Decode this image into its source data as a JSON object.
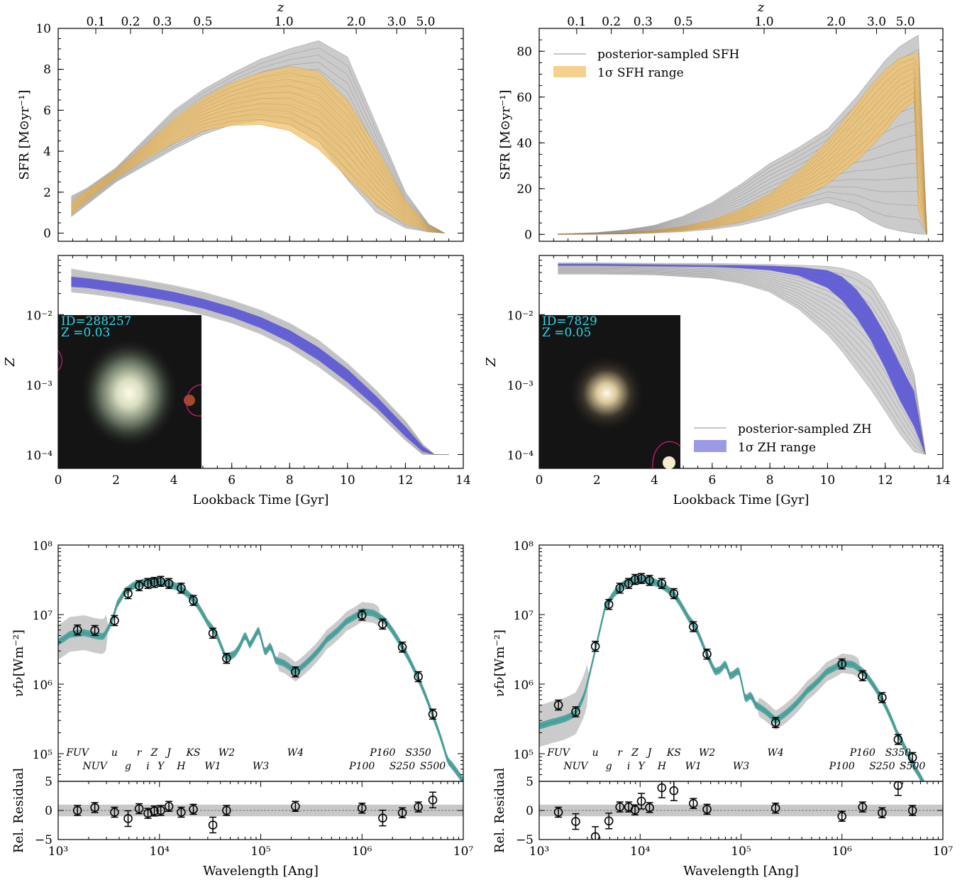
{
  "colors": {
    "posterior": "#8c8c8c",
    "sfh_band": "#f2c26b",
    "zh_band": "#5a55d6",
    "sed_model": "#3f9e98",
    "residual_band": "#c8c8c8",
    "inset_bg": "#141414",
    "inset_text": "#2fd6e6",
    "inset_contour": "#d81b78"
  },
  "labels": {
    "z_top": "z",
    "sfr_ylabel": "SFR [M⊙yr⁻¹]",
    "zh_ylabel": "Z",
    "lookback_xlabel": "Lookback Time [Gyr]",
    "sed_ylabel": "νfν[Wm⁻²]",
    "resid_ylabel": "Rel. Residual",
    "wavelength_xlabel": "Wavelength [Ang]"
  },
  "legends": {
    "sfh_samples": "posterior-sampled SFH",
    "sfh_range": "1σ SFH range",
    "zh_samples": "posterior-sampled ZH",
    "zh_range": "1σ ZH range"
  },
  "redshift_ticks": [
    "0.1",
    "0.2",
    "0.3",
    "0.5",
    "1.0",
    "2.0",
    "3.0",
    "5.0"
  ],
  "lookback_ticks": [
    "0",
    "2",
    "4",
    "6",
    "8",
    "10",
    "12",
    "14"
  ],
  "sed_ticks": [
    "10⁵",
    "10⁶",
    "10⁷",
    "10⁸"
  ],
  "wl_ticks": [
    "10³",
    "10⁴",
    "10⁵",
    "10⁶",
    "10⁷"
  ],
  "resid_ticks": [
    "−5",
    "0",
    "5"
  ],
  "zh_ticks": [
    "10⁻⁴",
    "10⁻³",
    "10⁻²"
  ],
  "band_row1": [
    "FUV",
    "u",
    "r",
    "Z",
    "J",
    "KS",
    "W2",
    "W4",
    "P160",
    "S350"
  ],
  "band_row2": [
    "NUV",
    "g",
    "i",
    "Y",
    "H",
    "W1",
    "W3",
    "P100",
    "S250",
    "S500"
  ],
  "galaxies": [
    {
      "inset_id": "ID=288257",
      "inset_z": "Z =0.03",
      "sfr_ticks": [
        "0",
        "2",
        "4",
        "6",
        "8",
        "10"
      ]
    },
    {
      "inset_id": "ID=7829",
      "inset_z": "Z =0.05",
      "sfr_ticks": [
        "0",
        "20",
        "40",
        "60",
        "80"
      ]
    }
  ],
  "chart_data": [
    {
      "type": "area",
      "panel": "left-sfh",
      "xlabel": "Lookback Time [Gyr]",
      "ylabel": "SFR [M⊙yr⁻¹]",
      "xlim": [
        0,
        14
      ],
      "ylim": [
        -0.4,
        10
      ],
      "top_axis": "z",
      "x": [
        0.45,
        1,
        2,
        3,
        4,
        5,
        6,
        7,
        8,
        9,
        10,
        11,
        12,
        12.8,
        13.35
      ],
      "band_low": [
        0.9,
        1.6,
        2.7,
        3.6,
        4.4,
        5.0,
        5.25,
        5.3,
        5.0,
        4.1,
        2.7,
        1.35,
        0.45,
        0.1,
        0.0
      ],
      "band_high": [
        1.5,
        2.1,
        3.1,
        4.3,
        5.6,
        6.6,
        7.35,
        7.85,
        8.15,
        7.9,
        6.5,
        4.2,
        1.6,
        0.35,
        0.0
      ],
      "samples_low": [
        0.8,
        1.4,
        2.5,
        3.3,
        4.1,
        4.8,
        5.3,
        5.5,
        5.3,
        4.5,
        2.6,
        1.0,
        0.25,
        0.05,
        0.0
      ],
      "samples_high": [
        1.8,
        2.2,
        3.2,
        4.6,
        6.0,
        7.0,
        7.8,
        8.5,
        9.0,
        9.4,
        8.6,
        5.3,
        2.0,
        0.45,
        0.0
      ]
    },
    {
      "type": "area",
      "panel": "left-zh",
      "xlabel": "Lookback Time [Gyr]",
      "ylabel": "Z",
      "xscale": "linear",
      "yscale": "log",
      "xlim": [
        0,
        14
      ],
      "ylim": [
        8e-05,
        0.07
      ],
      "x": [
        0.45,
        1,
        2,
        3,
        4,
        5,
        6,
        7,
        8,
        9,
        10,
        11,
        12,
        12.6,
        13.0,
        13.5
      ],
      "band_low": [
        0.025,
        0.024,
        0.021,
        0.018,
        0.0152,
        0.0122,
        0.0092,
        0.0064,
        0.004,
        0.00222,
        0.00108,
        0.00047,
        0.00018,
        0.00011,
        0.0001,
        0.0001
      ],
      "band_high": [
        0.035,
        0.033,
        0.029,
        0.025,
        0.021,
        0.0168,
        0.0128,
        0.0092,
        0.006,
        0.0034,
        0.00165,
        0.00068,
        0.00025,
        0.00013,
        0.0001,
        0.0001
      ],
      "samples_low": [
        0.021,
        0.02,
        0.0176,
        0.015,
        0.0126,
        0.01,
        0.0076,
        0.0053,
        0.0033,
        0.0018,
        0.00088,
        0.0004,
        0.00016,
        0.0001,
        0.0001,
        0.0001
      ],
      "samples_high": [
        0.045,
        0.041,
        0.036,
        0.031,
        0.026,
        0.021,
        0.016,
        0.0115,
        0.0075,
        0.0043,
        0.002,
        0.00082,
        0.0003,
        0.00014,
        0.0001,
        0.0001
      ]
    },
    {
      "type": "scatter",
      "panel": "left-sed",
      "xlabel": "Wavelength [Ang]",
      "ylabel": "νfν[Wm⁻²]",
      "xscale": "log",
      "yscale": "log",
      "xlim": [
        1000,
        10000000
      ],
      "ylim": [
        40000,
        100000000
      ],
      "model_x": [
        1000,
        1300,
        1800,
        2300,
        2800,
        3400,
        3800,
        4500,
        5500,
        7000,
        9000,
        11000,
        13000,
        16000,
        22000,
        26000,
        30000,
        36000,
        45000,
        55000,
        62000,
        70000,
        78000,
        85000,
        95000,
        110000,
        125000,
        140000,
        170000,
        220000,
        300000,
        450000,
        700000,
        1000000,
        1300000,
        1700000,
        2500000,
        3500000,
        5000000,
        7000000,
        10000000
      ],
      "model_y": [
        4000000,
        5200000,
        5500000,
        5000000,
        4800000,
        8200000,
        14000000,
        21000000,
        26000000,
        29000000,
        30000000,
        29000000,
        27000000,
        24000000,
        16000000,
        11000000,
        7600000,
        5400000,
        2400000,
        2700000,
        3500000,
        5200000,
        3600000,
        4500000,
        6200000,
        2800000,
        3600000,
        2200000,
        2000000,
        1500000,
        2200000,
        4400000,
        8000000,
        11000000,
        10500000,
        8000000,
        3400000,
        1300000,
        350000,
        80000,
        40000
      ],
      "points": [
        {
          "x": 1550,
          "y": 6000000,
          "resid": 0.0
        },
        {
          "x": 2300,
          "y": 5900000,
          "resid": 0.5
        },
        {
          "x": 3600,
          "y": 8200000,
          "resid": -0.3
        },
        {
          "x": 4900,
          "y": 20000000,
          "resid": -1.4
        },
        {
          "x": 6300,
          "y": 26000000,
          "resid": 0.3
        },
        {
          "x": 7700,
          "y": 28000000,
          "resid": -0.5
        },
        {
          "x": 8900,
          "y": 29000000,
          "resid": -0.1
        },
        {
          "x": 10300,
          "y": 30000000,
          "resid": 0.0
        },
        {
          "x": 12400,
          "y": 28000000,
          "resid": 0.7
        },
        {
          "x": 16400,
          "y": 24000000,
          "resid": -0.3
        },
        {
          "x": 21600,
          "y": 16000000,
          "resid": 0.2
        },
        {
          "x": 33700,
          "y": 5400000,
          "resid": -2.5
        },
        {
          "x": 46000,
          "y": 2350000,
          "resid": 0.0
        },
        {
          "x": 220000,
          "y": 1500000,
          "resid": 0.7
        },
        {
          "x": 1000000,
          "y": 9800000,
          "resid": 0.4
        },
        {
          "x": 1600000,
          "y": 7300000,
          "resid": -1.3
        },
        {
          "x": 2500000,
          "y": 3400000,
          "resid": -0.4
        },
        {
          "x": 3600000,
          "y": 1280000,
          "resid": 0.6
        },
        {
          "x": 5000000,
          "y": 370000,
          "resid": 1.8
        }
      ],
      "band_x": [
        1550,
        2300,
        3600,
        4900,
        6300,
        7700,
        8900,
        10300,
        12400,
        16400,
        21600,
        33700,
        46000,
        120000,
        220000,
        1000000,
        1600000,
        2500000,
        3600000,
        5000000
      ],
      "residual_ylim": [
        -5,
        5
      ]
    },
    {
      "type": "area",
      "panel": "right-sfh",
      "xlabel": "Lookback Time [Gyr]",
      "ylabel": "SFR [M⊙yr⁻¹]",
      "xlim": [
        0,
        14
      ],
      "ylim": [
        -3,
        90
      ],
      "top_axis": "z",
      "x": [
        0.65,
        2,
        3,
        4,
        5,
        6,
        7,
        8,
        9,
        10,
        11,
        11.5,
        12,
        12.5,
        13.0,
        13.15,
        13.45
      ],
      "band_low": [
        0.0,
        0.1,
        0.3,
        0.8,
        1.6,
        3.0,
        5.5,
        9.5,
        15.0,
        22.0,
        32.0,
        38.0,
        45.0,
        53.0,
        58.0,
        10.0,
        0.0
      ],
      "band_high": [
        0.05,
        0.25,
        0.8,
        1.8,
        3.5,
        6.5,
        11.0,
        18.0,
        28.0,
        41.0,
        57.0,
        65.0,
        72.0,
        77.0,
        79.0,
        79.0,
        0.0
      ],
      "samples_low": [
        0.0,
        0.05,
        0.2,
        0.6,
        1.2,
        2.2,
        4.0,
        7.0,
        11.0,
        14.0,
        10.0,
        6.0,
        3.0,
        1.5,
        0.5,
        0.2,
        0.0
      ],
      "samples_high": [
        0.2,
        0.8,
        2.0,
        4.0,
        8.0,
        14.0,
        22.0,
        31.0,
        38.0,
        46.0,
        60.0,
        68.0,
        76.0,
        82.0,
        86.0,
        87.0,
        0.0
      ]
    },
    {
      "type": "area",
      "panel": "right-zh",
      "xlabel": "Lookback Time [Gyr]",
      "ylabel": "Z",
      "xscale": "linear",
      "yscale": "log",
      "xlim": [
        0,
        14
      ],
      "ylim": [
        8e-05,
        0.07
      ],
      "x": [
        0.65,
        2,
        4,
        6,
        7,
        8,
        9,
        10,
        10.5,
        11,
        11.5,
        12,
        12.5,
        13.0,
        13.4
      ],
      "band_low": [
        0.05,
        0.05,
        0.049,
        0.048,
        0.046,
        0.043,
        0.036,
        0.024,
        0.016,
        0.009,
        0.0043,
        0.0017,
        0.0006,
        0.00025,
        0.0001
      ],
      "band_high": [
        0.053,
        0.053,
        0.052,
        0.051,
        0.051,
        0.05,
        0.048,
        0.043,
        0.035,
        0.023,
        0.012,
        0.0053,
        0.002,
        0.0008,
        0.0001
      ],
      "samples_low": [
        0.038,
        0.038,
        0.037,
        0.033,
        0.028,
        0.021,
        0.012,
        0.0052,
        0.003,
        0.0016,
        0.00085,
        0.00042,
        0.0002,
        0.00011,
        0.0001
      ],
      "samples_high": [
        0.055,
        0.055,
        0.054,
        0.054,
        0.053,
        0.052,
        0.051,
        0.049,
        0.046,
        0.04,
        0.03,
        0.014,
        0.0055,
        0.0014,
        0.0001
      ]
    },
    {
      "type": "scatter",
      "panel": "right-sed",
      "xlabel": "Wavelength [Ang]",
      "ylabel": "νfν[Wm⁻²]",
      "xscale": "log",
      "yscale": "log",
      "xlim": [
        1000,
        10000000
      ],
      "ylim": [
        40000,
        100000000
      ],
      "model_x": [
        1000,
        1300,
        1800,
        2300,
        2800,
        3400,
        3800,
        4500,
        5500,
        7000,
        9000,
        11000,
        13000,
        16000,
        22000,
        26000,
        30000,
        36000,
        45000,
        55000,
        62000,
        70000,
        78000,
        85000,
        95000,
        110000,
        125000,
        140000,
        170000,
        220000,
        300000,
        450000,
        700000,
        1000000,
        1300000,
        1700000,
        2500000,
        3500000,
        5000000,
        7000000,
        10000000
      ],
      "model_y": [
        250000,
        280000,
        320000,
        380000,
        700000,
        2200000,
        4500000,
        13000000,
        20000000,
        28000000,
        32000000,
        32000000,
        30000000,
        27000000,
        19000000,
        13000000,
        9000000,
        6200000,
        2800000,
        1500000,
        1600000,
        2000000,
        1300000,
        1400000,
        1600000,
        600000,
        700000,
        500000,
        420000,
        300000,
        420000,
        800000,
        1500000,
        2000000,
        1900000,
        1400000,
        600000,
        200000,
        70000,
        30000,
        15000
      ],
      "points": [
        {
          "x": 1550,
          "y": 500000,
          "resid": -0.3
        },
        {
          "x": 2300,
          "y": 400000,
          "resid": -1.9
        },
        {
          "x": 3600,
          "y": 3500000,
          "resid": -4.5
        },
        {
          "x": 4900,
          "y": 14000000,
          "resid": -1.8
        },
        {
          "x": 6300,
          "y": 24000000,
          "resid": 0.6
        },
        {
          "x": 7700,
          "y": 28000000,
          "resid": 0.6
        },
        {
          "x": 8900,
          "y": 32000000,
          "resid": 0.1
        },
        {
          "x": 10300,
          "y": 33000000,
          "resid": 1.6
        },
        {
          "x": 12400,
          "y": 31000000,
          "resid": 0.5
        },
        {
          "x": 16400,
          "y": 28000000,
          "resid": 3.9
        },
        {
          "x": 21600,
          "y": 20000000,
          "resid": 3.4
        },
        {
          "x": 33700,
          "y": 6700000,
          "resid": 1.2
        },
        {
          "x": 46000,
          "y": 2700000,
          "resid": 0.2
        },
        {
          "x": 220000,
          "y": 280000,
          "resid": 0.4
        },
        {
          "x": 1000000,
          "y": 1950000,
          "resid": -1.0
        },
        {
          "x": 1600000,
          "y": 1320000,
          "resid": 0.6
        },
        {
          "x": 2500000,
          "y": 640000,
          "resid": -0.4
        },
        {
          "x": 3600000,
          "y": 160000,
          "resid": 4.3
        },
        {
          "x": 5000000,
          "y": 88000,
          "resid": 0.0
        }
      ],
      "band_x": [
        1550,
        2300,
        3600,
        4900,
        6300,
        7700,
        8900,
        10300,
        12400,
        16400,
        21600,
        33700,
        46000,
        220000,
        1000000,
        1600000,
        2500000,
        3600000,
        5000000
      ],
      "residual_ylim": [
        -5,
        5
      ]
    }
  ]
}
